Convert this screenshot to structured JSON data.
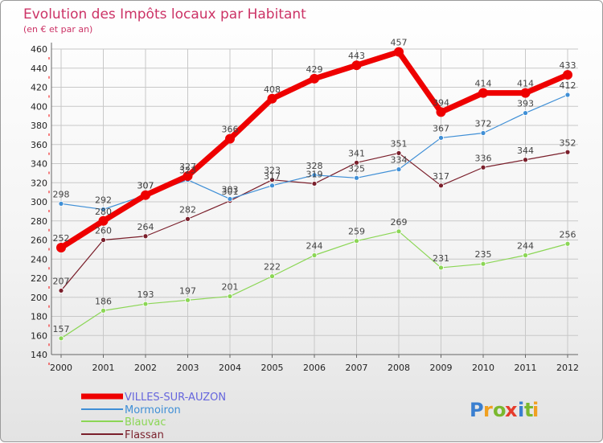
{
  "chart_data": {
    "type": "line",
    "title": "Evolution des Impôts locaux par Habitant",
    "subtitle": "(en € et par an)",
    "xlabel": "",
    "ylabel": "",
    "ylim": [
      140,
      460
    ],
    "yticks": [
      140,
      160,
      180,
      200,
      220,
      240,
      260,
      280,
      300,
      320,
      340,
      360,
      380,
      400,
      420,
      440,
      460
    ],
    "x": [
      "2000",
      "2001",
      "2002",
      "2003",
      "2004",
      "2005",
      "2006",
      "2007",
      "2008",
      "2009",
      "2010",
      "2011",
      "2012"
    ],
    "grid": true,
    "legend": "bottom-left",
    "series": [
      {
        "name": "VILLES-SUR-AUZON",
        "color": "#ee0000",
        "legend_color": "#6666dd",
        "values": [
          252,
          280,
          307,
          327,
          366,
          408,
          429,
          443,
          457,
          394,
          414,
          414,
          433
        ]
      },
      {
        "name": "Mormoiron",
        "color": "#3f8fd6",
        "legend_color": "#3f8fd6",
        "values": [
          298,
          292,
          307,
          323,
          303,
          317,
          328,
          325,
          334,
          367,
          372,
          393,
          412
        ]
      },
      {
        "name": "Blauvac",
        "color": "#8bd655",
        "legend_color": "#8bd655",
        "values": [
          157,
          186,
          193,
          197,
          201,
          222,
          244,
          259,
          269,
          231,
          235,
          244,
          256
        ]
      },
      {
        "name": "Flassan",
        "color": "#7a1f2b",
        "legend_color": "#7a1f2b",
        "values": [
          207,
          260,
          264,
          282,
          301,
          323,
          319,
          341,
          351,
          317,
          336,
          344,
          352
        ]
      }
    ]
  },
  "logo": {
    "text": "Proxiti",
    "letters": [
      "P",
      "r",
      "o",
      "x",
      "i",
      "t",
      "i"
    ]
  },
  "colors": {
    "title": "#cc3366",
    "grid": "#c8c8c8",
    "axis": "#666666"
  }
}
